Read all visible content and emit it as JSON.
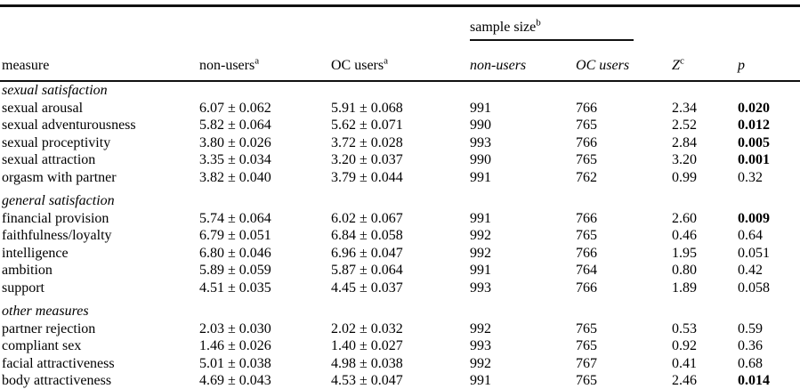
{
  "table": {
    "header": {
      "measure": "measure",
      "nonusers": "non-users",
      "nonusers_sup": "a",
      "ocusers": "OC users",
      "ocusers_sup": "a",
      "sample_size": "sample size",
      "sample_size_sup": "b",
      "sample_nonusers": "non-users",
      "sample_ocusers": "OC users",
      "z": "Z",
      "z_sup": "c",
      "p": "p"
    },
    "sections": [
      {
        "label": "sexual satisfaction",
        "rows": [
          {
            "measure": "sexual arousal",
            "nonusers": "6.07 ± 0.062",
            "ocusers": "5.91 ± 0.068",
            "n_nonusers": "991",
            "n_ocusers": "766",
            "z": "2.34",
            "p": "0.020",
            "p_bold": true
          },
          {
            "measure": "sexual adventurousness",
            "nonusers": "5.82 ± 0.064",
            "ocusers": "5.62 ± 0.071",
            "n_nonusers": "990",
            "n_ocusers": "765",
            "z": "2.52",
            "p": "0.012",
            "p_bold": true
          },
          {
            "measure": "sexual proceptivity",
            "nonusers": "3.80 ± 0.026",
            "ocusers": "3.72 ± 0.028",
            "n_nonusers": "993",
            "n_ocusers": "766",
            "z": "2.84",
            "p": "0.005",
            "p_bold": true
          },
          {
            "measure": "sexual attraction",
            "nonusers": "3.35 ± 0.034",
            "ocusers": "3.20 ± 0.037",
            "n_nonusers": "990",
            "n_ocusers": "765",
            "z": "3.20",
            "p": "0.001",
            "p_bold": true
          },
          {
            "measure": "orgasm with partner",
            "nonusers": "3.82 ± 0.040",
            "ocusers": "3.79 ± 0.044",
            "n_nonusers": "991",
            "n_ocusers": "762",
            "z": "0.99",
            "p": "0.32",
            "p_bold": false
          }
        ]
      },
      {
        "label": "general satisfaction",
        "rows": [
          {
            "measure": "financial provision",
            "nonusers": "5.74 ± 0.064",
            "ocusers": "6.02 ± 0.067",
            "n_nonusers": "991",
            "n_ocusers": "766",
            "z": "2.60",
            "p": "0.009",
            "p_bold": true
          },
          {
            "measure": "faithfulness/loyalty",
            "nonusers": "6.79 ± 0.051",
            "ocusers": "6.84 ± 0.058",
            "n_nonusers": "992",
            "n_ocusers": "765",
            "z": "0.46",
            "p": "0.64",
            "p_bold": false
          },
          {
            "measure": "intelligence",
            "nonusers": "6.80 ± 0.046",
            "ocusers": "6.96 ± 0.047",
            "n_nonusers": "992",
            "n_ocusers": "766",
            "z": "1.95",
            "p": "0.051",
            "p_bold": false
          },
          {
            "measure": "ambition",
            "nonusers": "5.89 ± 0.059",
            "ocusers": "5.87 ± 0.064",
            "n_nonusers": "991",
            "n_ocusers": "764",
            "z": "0.80",
            "p": "0.42",
            "p_bold": false
          },
          {
            "measure": "support",
            "nonusers": "4.51 ± 0.035",
            "ocusers": "4.45 ± 0.037",
            "n_nonusers": "993",
            "n_ocusers": "766",
            "z": "1.89",
            "p": "0.058",
            "p_bold": false
          }
        ]
      },
      {
        "label": "other measures",
        "rows": [
          {
            "measure": "partner rejection",
            "nonusers": "2.03 ± 0.030",
            "ocusers": "2.02 ± 0.032",
            "n_nonusers": "992",
            "n_ocusers": "765",
            "z": "0.53",
            "p": "0.59",
            "p_bold": false
          },
          {
            "measure": "compliant sex",
            "nonusers": "1.46 ± 0.026",
            "ocusers": "1.40 ± 0.027",
            "n_nonusers": "993",
            "n_ocusers": "765",
            "z": "0.92",
            "p": "0.36",
            "p_bold": false
          },
          {
            "measure": "facial attractiveness",
            "nonusers": "5.01 ± 0.038",
            "ocusers": "4.98 ± 0.038",
            "n_nonusers": "992",
            "n_ocusers": "767",
            "z": "0.41",
            "p": "0.68",
            "p_bold": false
          },
          {
            "measure": "body attractiveness",
            "nonusers": "4.69 ± 0.043",
            "ocusers": "4.53 ± 0.047",
            "n_nonusers": "991",
            "n_ocusers": "765",
            "z": "2.46",
            "p": "0.014",
            "p_bold": true
          }
        ]
      }
    ],
    "colors": {
      "text": "#000000",
      "background": "#ffffff",
      "rule": "#111111"
    }
  }
}
